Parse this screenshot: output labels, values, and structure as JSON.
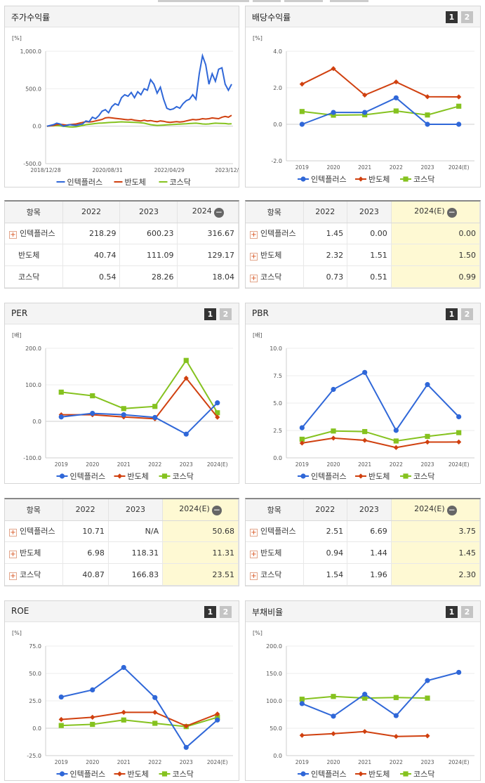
{
  "legend_names": [
    "인텍플러스",
    "반도체",
    "코스닥"
  ],
  "colors": {
    "s0": "#2f67d8",
    "s1": "#d0400f",
    "s2": "#85c21f"
  },
  "panels": [
    {
      "title": "주가수익률",
      "buttons": []
    },
    {
      "title": "배당수익률",
      "buttons": [
        "1",
        "2"
      ]
    },
    {
      "title": "PER",
      "buttons": [
        "1",
        "2"
      ]
    },
    {
      "title": "PBR",
      "buttons": [
        "1",
        "2"
      ]
    },
    {
      "title": "ROE",
      "buttons": [
        "1",
        "2"
      ]
    },
    {
      "title": "부채비율",
      "buttons": [
        "1",
        "2"
      ]
    }
  ],
  "tables": [
    {
      "header": [
        "항목",
        "2022",
        "2023",
        "2024"
      ],
      "rows": [
        {
          "name": "인텍플러스",
          "v": [
            "218.29",
            "600.23",
            "316.67"
          ],
          "plus": true
        },
        {
          "name": "반도체",
          "v": [
            "40.74",
            "111.09",
            "129.17"
          ],
          "plus": false
        },
        {
          "name": "코스닥",
          "v": [
            "0.54",
            "28.26",
            "18.04"
          ],
          "plus": false
        }
      ]
    },
    {
      "header": [
        "항목",
        "2022",
        "2023",
        "2024(E)"
      ],
      "rows": [
        {
          "name": "인텍플러스",
          "v": [
            "1.45",
            "0.00",
            "0.00"
          ],
          "plus": true
        },
        {
          "name": "반도체",
          "v": [
            "2.32",
            "1.51",
            "1.50"
          ],
          "plus": true
        },
        {
          "name": "코스닥",
          "v": [
            "0.73",
            "0.51",
            "0.99"
          ],
          "plus": true
        }
      ]
    },
    {
      "header": [
        "항목",
        "2022",
        "2023",
        "2024(E)"
      ],
      "rows": [
        {
          "name": "인텍플러스",
          "v": [
            "10.71",
            "N/A",
            "50.68"
          ],
          "plus": true
        },
        {
          "name": "반도체",
          "v": [
            "6.98",
            "118.31",
            "11.31"
          ],
          "plus": true
        },
        {
          "name": "코스닥",
          "v": [
            "40.87",
            "166.83",
            "23.51"
          ],
          "plus": true
        }
      ]
    },
    {
      "header": [
        "항목",
        "2022",
        "2023",
        "2024(E)"
      ],
      "rows": [
        {
          "name": "인텍플러스",
          "v": [
            "2.51",
            "6.69",
            "3.75"
          ],
          "plus": true
        },
        {
          "name": "반도체",
          "v": [
            "0.94",
            "1.44",
            "1.45"
          ],
          "plus": true
        },
        {
          "name": "코스닥",
          "v": [
            "1.54",
            "1.96",
            "2.30"
          ],
          "plus": true
        }
      ]
    }
  ],
  "chart_data": [
    {
      "type": "line",
      "title": "주가수익률",
      "unit": "[%]",
      "ylim": [
        -500,
        1000
      ],
      "yticks": [
        "1,000.0",
        "500.0",
        "0.0",
        "-500.0"
      ],
      "ytick_values": [
        1000,
        500,
        0,
        -500
      ],
      "xlabels": [
        "2018/12/28",
        "2020/08/31",
        "2022/04/29",
        "2023/12/28"
      ],
      "series": [
        {
          "name": "인텍플러스",
          "values": [
            0,
            10,
            20,
            40,
            30,
            0,
            10,
            20,
            15,
            10,
            20,
            30,
            70,
            60,
            120,
            100,
            140,
            200,
            220,
            180,
            260,
            300,
            280,
            380,
            420,
            400,
            450,
            380,
            460,
            420,
            500,
            480,
            620,
            560,
            440,
            520,
            360,
            240,
            220,
            230,
            260,
            240,
            300,
            340,
            360,
            420,
            360,
            700,
            940,
            820,
            560,
            700,
            600,
            760,
            780,
            560,
            480,
            560
          ]
        },
        {
          "name": "반도체",
          "values": [
            0,
            5,
            10,
            20,
            25,
            20,
            15,
            20,
            25,
            30,
            40,
            50,
            60,
            55,
            60,
            70,
            80,
            90,
            110,
            115,
            110,
            105,
            100,
            95,
            90,
            85,
            90,
            80,
            75,
            70,
            80,
            70,
            75,
            65,
            60,
            70,
            65,
            55,
            50,
            55,
            60,
            55,
            60,
            70,
            80,
            90,
            85,
            90,
            100,
            95,
            100,
            110,
            105,
            100,
            120,
            130,
            120,
            145
          ]
        },
        {
          "name": "코스닥",
          "values": [
            0,
            3,
            5,
            8,
            5,
            0,
            -5,
            -10,
            -12,
            -8,
            0,
            10,
            20,
            25,
            30,
            35,
            40,
            42,
            45,
            48,
            50,
            52,
            55,
            58,
            56,
            54,
            52,
            50,
            48,
            45,
            40,
            30,
            20,
            15,
            10,
            12,
            15,
            18,
            20,
            22,
            25,
            28,
            30,
            32,
            35,
            38,
            40,
            35,
            30,
            28,
            30,
            35,
            40,
            38,
            36,
            35,
            30,
            32
          ]
        }
      ]
    },
    {
      "type": "line",
      "title": "배당수익률",
      "unit": "[%]",
      "ylim": [
        -2,
        4
      ],
      "yticks": [
        "4.0",
        "2.0",
        "0.0",
        "-2.0"
      ],
      "ytick_values": [
        4,
        2,
        0,
        -2
      ],
      "categories": [
        "2019",
        "2020",
        "2021",
        "2022",
        "2023",
        "2024(E)"
      ],
      "series": [
        {
          "name": "인텍플러스",
          "values": [
            0.0,
            0.65,
            0.65,
            1.45,
            0.0,
            0.0
          ]
        },
        {
          "name": "반도체",
          "values": [
            2.2,
            3.05,
            1.6,
            2.32,
            1.51,
            1.5
          ]
        },
        {
          "name": "코스닥",
          "values": [
            0.7,
            0.5,
            0.52,
            0.73,
            0.51,
            0.99
          ]
        }
      ]
    },
    {
      "type": "line",
      "title": "PER",
      "unit": "[배]",
      "ylim": [
        -100,
        200
      ],
      "yticks": [
        "200.0",
        "100.0",
        "0.0",
        "-100.0"
      ],
      "ytick_values": [
        200,
        100,
        0,
        -100
      ],
      "categories": [
        "2019",
        "2020",
        "2021",
        "2022",
        "2023",
        "2024(E)"
      ],
      "series": [
        {
          "name": "인텍플러스",
          "values": [
            12,
            22,
            18,
            10.71,
            -35,
            50.68
          ]
        },
        {
          "name": "반도체",
          "values": [
            18,
            18,
            12,
            6.98,
            118.31,
            11.31
          ]
        },
        {
          "name": "코스닥",
          "values": [
            80,
            70,
            35,
            40.87,
            166.83,
            23.51
          ]
        }
      ]
    },
    {
      "type": "line",
      "title": "PBR",
      "unit": "[배]",
      "ylim": [
        0,
        10
      ],
      "yticks": [
        "10.0",
        "7.5",
        "5.0",
        "2.5",
        "0.0"
      ],
      "ytick_values": [
        10,
        7.5,
        5,
        2.5,
        0
      ],
      "categories": [
        "2019",
        "2020",
        "2021",
        "2022",
        "2023",
        "2024(E)"
      ],
      "series": [
        {
          "name": "인텍플러스",
          "values": [
            2.75,
            6.25,
            7.8,
            2.51,
            6.69,
            3.75
          ]
        },
        {
          "name": "반도체",
          "values": [
            1.35,
            1.8,
            1.6,
            0.94,
            1.44,
            1.45
          ]
        },
        {
          "name": "코스닥",
          "values": [
            1.7,
            2.45,
            2.4,
            1.54,
            1.96,
            2.3
          ]
        }
      ]
    },
    {
      "type": "line",
      "title": "ROE",
      "unit": "[%]",
      "ylim": [
        -25,
        75
      ],
      "yticks": [
        "75.0",
        "50.0",
        "25.0",
        "0.0",
        "-25.0"
      ],
      "ytick_values": [
        75,
        50,
        25,
        0,
        -25
      ],
      "categories": [
        "2019",
        "2020",
        "2021",
        "2022",
        "2023",
        "2024(E)"
      ],
      "series": [
        {
          "name": "인텍플러스",
          "values": [
            28.5,
            35,
            55.5,
            28,
            -17.5,
            7.5
          ]
        },
        {
          "name": "반도체",
          "values": [
            8,
            10,
            14.5,
            14.5,
            2,
            13
          ]
        },
        {
          "name": "코스닥",
          "values": [
            2.5,
            3.5,
            7.5,
            4.5,
            1.5,
            10
          ]
        }
      ]
    },
    {
      "type": "line",
      "title": "부채비율",
      "unit": "[%]",
      "ylim": [
        0,
        200
      ],
      "yticks": [
        "200.0",
        "150.0",
        "100.0",
        "50.0",
        "0.0"
      ],
      "ytick_values": [
        200,
        150,
        100,
        50,
        0
      ],
      "categories": [
        "2019",
        "2020",
        "2021",
        "2022",
        "2023",
        "2024(E)"
      ],
      "series": [
        {
          "name": "인텍플러스",
          "values": [
            95,
            72,
            112,
            73,
            137,
            152
          ]
        },
        {
          "name": "반도체",
          "values": [
            37,
            40,
            44,
            35,
            36,
            null
          ]
        },
        {
          "name": "코스닥",
          "values": [
            103,
            108,
            105,
            106,
            105,
            null
          ]
        }
      ]
    }
  ]
}
